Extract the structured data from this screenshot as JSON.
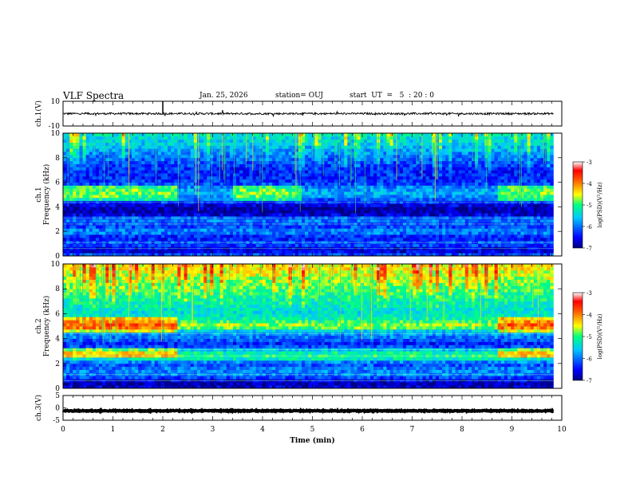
{
  "header": {
    "title": "VLF Spectra",
    "date": "Jan. 25, 2026",
    "station": "station= OUJ",
    "start": "start  UT  =   5  : 20 : 0"
  },
  "chart_data": [
    {
      "panel": "ch1-waveform",
      "type": "line",
      "ylabel": "ch.1(V)",
      "ylim": [
        -10,
        10
      ],
      "yticks": [
        "10",
        "-10"
      ],
      "xlim": [
        0,
        10
      ],
      "x_end": 9.83,
      "baseline_v": 0,
      "notes": "noisy waveform centred near 0 V with small spikes"
    },
    {
      "panel": "ch1-spectrogram",
      "type": "heatmap",
      "ylabel": "Frequency (kHz)",
      "channel_label": "ch.1",
      "ylim": [
        0,
        10
      ],
      "yticks": [
        "0",
        "2",
        "4",
        "6",
        "8",
        "10"
      ],
      "xlim": [
        0,
        10
      ],
      "x_end": 9.83,
      "colorbar": {
        "label": "log(PSD)(V²/Hz)",
        "min": -7,
        "max": -3,
        "ticks": [
          "-3",
          "-4",
          "-5",
          "-6",
          "-7"
        ]
      },
      "features": {
        "band_5khz_segments": [
          [
            0,
            2.3
          ],
          [
            3.4,
            4.8
          ],
          [
            8.7,
            9.83
          ]
        ],
        "spectrum_profile": [
          {
            "f": 0.0,
            "v": -6.0
          },
          {
            "f": 0.5,
            "v": -6.8
          },
          {
            "f": 1.0,
            "v": -6.1
          },
          {
            "f": 1.5,
            "v": -6.5
          },
          {
            "f": 2.0,
            "v": -5.8
          },
          {
            "f": 2.5,
            "v": -6.3
          },
          {
            "f": 3.0,
            "v": -5.9
          },
          {
            "f": 3.5,
            "v": -6.9
          },
          {
            "f": 4.0,
            "v": -6.8
          },
          {
            "f": 4.5,
            "v": -6.2
          },
          {
            "f": 5.0,
            "v": -5.7
          },
          {
            "f": 5.5,
            "v": -5.8
          },
          {
            "f": 6.0,
            "v": -6.3
          },
          {
            "f": 7.0,
            "v": -6.4
          },
          {
            "f": 8.0,
            "v": -6.0
          },
          {
            "f": 9.0,
            "v": -5.6
          },
          {
            "f": 10.0,
            "v": -5.3
          }
        ]
      }
    },
    {
      "panel": "ch2-spectrogram",
      "type": "heatmap",
      "ylabel": "Frequency (kHz)",
      "channel_label": "ch.2",
      "ylim": [
        0,
        10
      ],
      "yticks": [
        "0",
        "2",
        "4",
        "6",
        "8",
        "10"
      ],
      "xlim": [
        0,
        10
      ],
      "x_end": 9.83,
      "colorbar": {
        "label": "log(PSD)(V²/Hz)",
        "min": -7,
        "max": -3,
        "ticks": [
          "-3",
          "-4",
          "-5",
          "-6",
          "-7"
        ]
      },
      "features": {
        "band_5khz_segments": [
          [
            0,
            2.3
          ],
          [
            8.7,
            9.83
          ]
        ],
        "band_3khz_segments": [
          [
            0,
            2.3
          ],
          [
            8.7,
            9.83
          ]
        ],
        "spectrum_profile": [
          {
            "f": 0.0,
            "v": -6.6
          },
          {
            "f": 0.5,
            "v": -6.9
          },
          {
            "f": 1.0,
            "v": -6.0
          },
          {
            "f": 1.5,
            "v": -5.9
          },
          {
            "f": 2.0,
            "v": -6.2
          },
          {
            "f": 2.5,
            "v": -5.0
          },
          {
            "f": 3.0,
            "v": -5.3
          },
          {
            "f": 3.5,
            "v": -6.5
          },
          {
            "f": 4.0,
            "v": -6.0
          },
          {
            "f": 4.5,
            "v": -5.8
          },
          {
            "f": 5.0,
            "v": -4.6
          },
          {
            "f": 5.5,
            "v": -5.1
          },
          {
            "f": 6.0,
            "v": -5.4
          },
          {
            "f": 7.0,
            "v": -5.2
          },
          {
            "f": 8.0,
            "v": -4.9
          },
          {
            "f": 9.0,
            "v": -4.6
          },
          {
            "f": 10.0,
            "v": -4.4
          }
        ]
      }
    },
    {
      "panel": "ch3-waveform",
      "type": "line",
      "ylabel": "ch.3(V)",
      "ylim": [
        -5,
        5
      ],
      "yticks": [
        "5",
        "0",
        "-5"
      ],
      "xlim": [
        0,
        10
      ],
      "x_end": 9.83,
      "baseline_v": -1.2,
      "xlabel": "Time (min)",
      "xticks": [
        "0",
        "1",
        "2",
        "3",
        "4",
        "5",
        "6",
        "7",
        "8",
        "9",
        "10"
      ]
    }
  ]
}
